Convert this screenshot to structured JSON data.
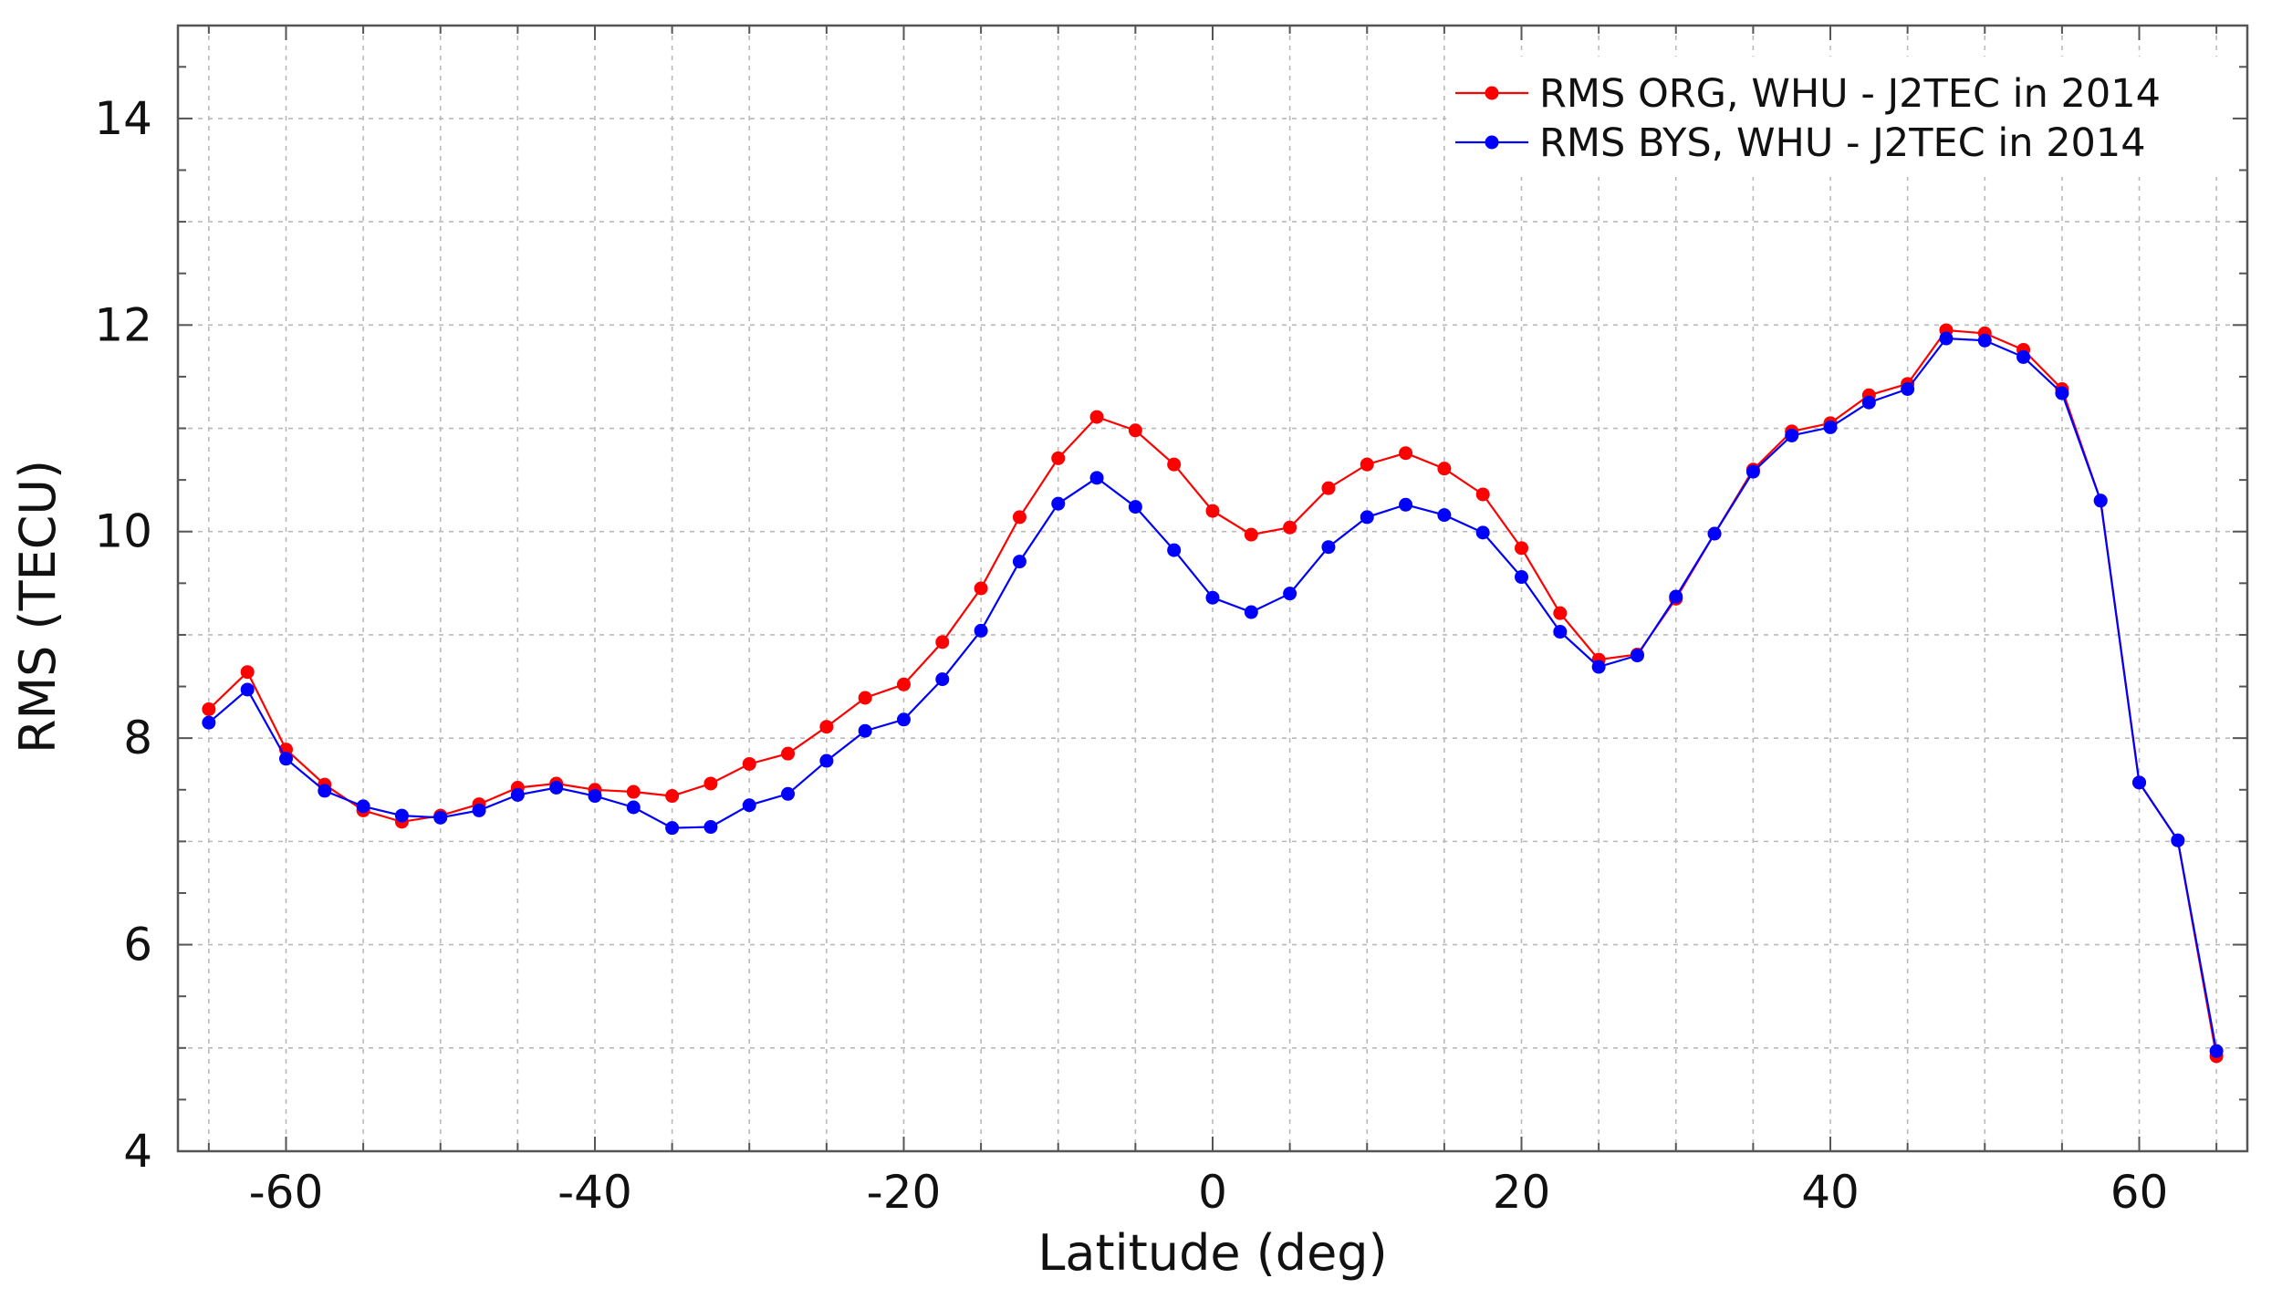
{
  "chart_data": {
    "type": "line",
    "title": "",
    "xlabel": "Latitude (deg)",
    "ylabel": "RMS (TECU)",
    "xlim": [
      -67,
      67
    ],
    "ylim": [
      4,
      14.9
    ],
    "xticks": [
      -60,
      -40,
      -20,
      0,
      20,
      40,
      60
    ],
    "yticks": [
      4,
      6,
      8,
      10,
      12,
      14
    ],
    "x_tick_labels": [
      "-60",
      "-40",
      "-20",
      "0",
      "20",
      "40",
      "60"
    ],
    "y_tick_labels": [
      "4",
      "6",
      "8",
      "10",
      "12",
      "14"
    ],
    "grid": true,
    "legend_position": "top-right",
    "x": [
      -65,
      -62.5,
      -60,
      -57.5,
      -55,
      -52.5,
      -50,
      -47.5,
      -45,
      -42.5,
      -40,
      -37.5,
      -35,
      -32.5,
      -30,
      -27.5,
      -25,
      -22.5,
      -20,
      -17.5,
      -15,
      -12.5,
      -10,
      -7.5,
      -5,
      -2.5,
      0,
      2.5,
      5,
      7.5,
      10,
      12.5,
      15,
      17.5,
      20,
      22.5,
      25,
      27.5,
      30,
      32.5,
      35,
      37.5,
      40,
      42.5,
      45,
      47.5,
      50,
      52.5,
      55,
      57.5,
      60,
      62.5,
      65
    ],
    "series": [
      {
        "name": "RMS ORG, WHU - J2TEC in 2014",
        "color": "#ff0000",
        "values": [
          8.28,
          8.64,
          7.89,
          7.55,
          7.3,
          7.19,
          7.25,
          7.36,
          7.52,
          7.56,
          7.5,
          7.48,
          7.44,
          7.56,
          7.75,
          7.85,
          8.11,
          8.39,
          8.52,
          8.93,
          9.45,
          10.14,
          10.71,
          11.11,
          10.98,
          10.65,
          10.2,
          9.97,
          10.04,
          10.42,
          10.65,
          10.76,
          10.61,
          10.36,
          9.84,
          9.21,
          8.76,
          8.81,
          9.35,
          9.98,
          10.6,
          10.97,
          11.05,
          11.32,
          11.43,
          11.95,
          11.92,
          11.76,
          11.38,
          10.3,
          7.57,
          7.01,
          4.92
        ]
      },
      {
        "name": "RMS BYS, WHU - J2TEC in 2014",
        "color": "#0000ff",
        "values": [
          8.15,
          8.47,
          7.8,
          7.49,
          7.34,
          7.25,
          7.23,
          7.3,
          7.45,
          7.52,
          7.44,
          7.33,
          7.13,
          7.14,
          7.35,
          7.46,
          7.78,
          8.07,
          8.18,
          8.57,
          9.04,
          9.71,
          10.27,
          10.52,
          10.24,
          9.82,
          9.36,
          9.22,
          9.4,
          9.85,
          10.14,
          10.26,
          10.16,
          9.99,
          9.56,
          9.03,
          8.69,
          8.8,
          9.37,
          9.98,
          10.58,
          10.93,
          11.01,
          11.25,
          11.38,
          11.87,
          11.85,
          11.69,
          11.34,
          10.3,
          7.57,
          7.01,
          4.97
        ]
      }
    ]
  }
}
